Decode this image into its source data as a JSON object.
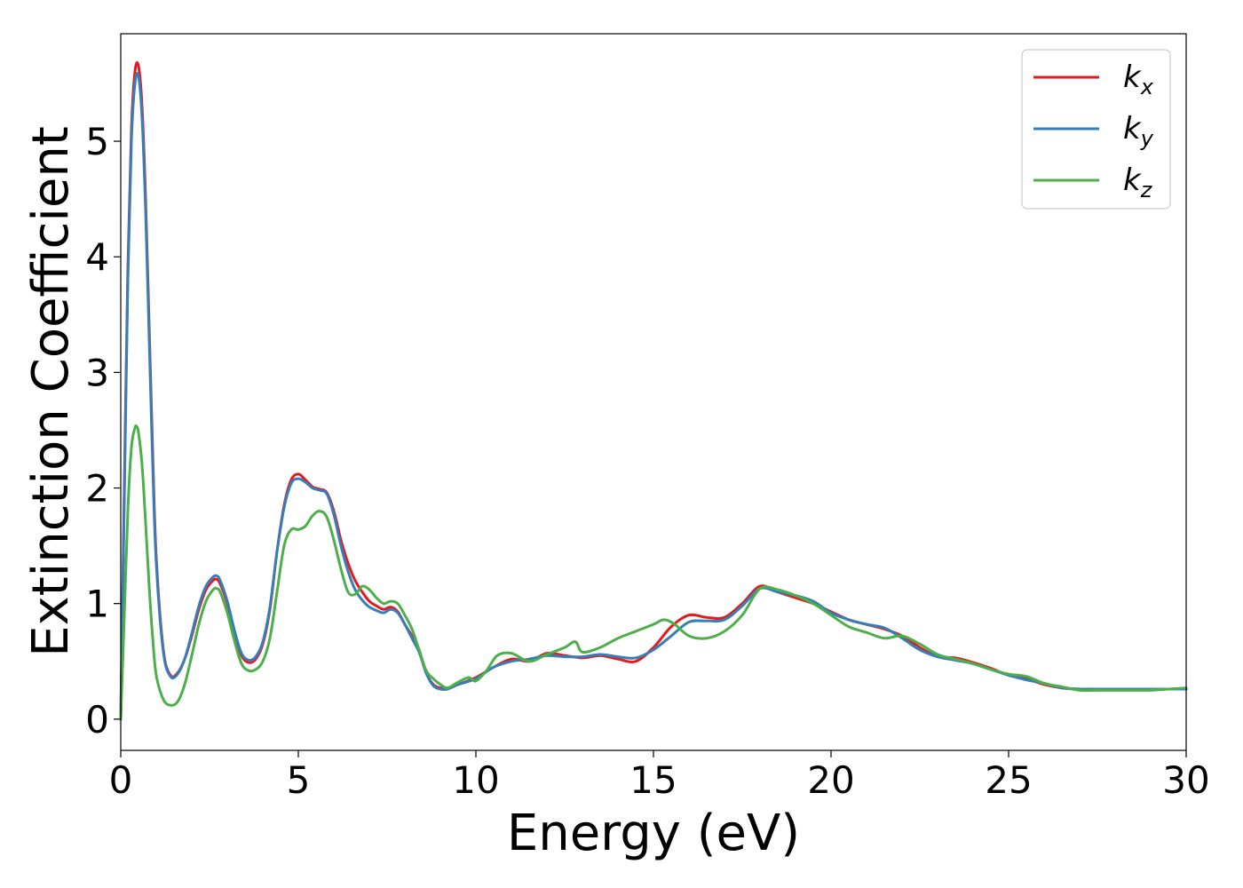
{
  "chart_data": {
    "type": "line",
    "title": "",
    "xlabel": "Energy (eV)",
    "ylabel": "Extinction Coefficient",
    "xlim": [
      0,
      30
    ],
    "ylim": [
      -0.27,
      5.93
    ],
    "xticks": [
      0,
      5,
      10,
      15,
      20,
      25,
      30
    ],
    "yticks": [
      0,
      1,
      2,
      3,
      4,
      5
    ],
    "grid": false,
    "legend_position": "top-right",
    "series": [
      {
        "name": "k",
        "subscript": "x",
        "color": "#e41a1c",
        "x": [
          0,
          0.1,
          0.2,
          0.3,
          0.4,
          0.5,
          0.6,
          0.7,
          0.8,
          0.9,
          1.0,
          1.2,
          1.4,
          1.6,
          1.8,
          2.0,
          2.2,
          2.4,
          2.6,
          2.7,
          2.8,
          3.0,
          3.2,
          3.4,
          3.6,
          3.8,
          4.0,
          4.2,
          4.4,
          4.6,
          4.8,
          5.0,
          5.2,
          5.4,
          5.6,
          5.8,
          6.0,
          6.2,
          6.4,
          6.6,
          6.8,
          7.0,
          7.2,
          7.4,
          7.6,
          7.8,
          8.0,
          8.2,
          8.4,
          8.6,
          8.8,
          9.0,
          9.2,
          9.5,
          10.0,
          10.5,
          11.0,
          11.5,
          12.0,
          12.5,
          13.0,
          13.5,
          14.0,
          14.5,
          15.0,
          15.5,
          16.0,
          16.5,
          17.0,
          17.5,
          18.0,
          18.5,
          19.0,
          19.5,
          20.0,
          20.5,
          21.0,
          21.5,
          22.0,
          22.5,
          23.0,
          23.5,
          24.0,
          24.5,
          25.0,
          25.5,
          26.0,
          26.5,
          27.0,
          27.5,
          28.0,
          28.5,
          29.0,
          29.5,
          30.0
        ],
        "y": [
          0.0,
          2.0,
          3.9,
          5.1,
          5.6,
          5.65,
          5.3,
          4.5,
          3.4,
          2.3,
          1.4,
          0.6,
          0.38,
          0.4,
          0.52,
          0.72,
          0.95,
          1.12,
          1.2,
          1.21,
          1.17,
          1.0,
          0.75,
          0.55,
          0.49,
          0.52,
          0.65,
          0.95,
          1.45,
          1.85,
          2.07,
          2.12,
          2.07,
          2.01,
          1.99,
          1.96,
          1.8,
          1.55,
          1.35,
          1.2,
          1.1,
          1.02,
          0.98,
          0.95,
          0.97,
          0.93,
          0.82,
          0.72,
          0.6,
          0.4,
          0.3,
          0.27,
          0.27,
          0.3,
          0.36,
          0.45,
          0.52,
          0.5,
          0.57,
          0.55,
          0.53,
          0.55,
          0.52,
          0.5,
          0.62,
          0.8,
          0.9,
          0.88,
          0.88,
          1.0,
          1.15,
          1.1,
          1.05,
          1.0,
          0.93,
          0.86,
          0.82,
          0.78,
          0.72,
          0.62,
          0.54,
          0.53,
          0.49,
          0.44,
          0.38,
          0.35,
          0.3,
          0.27,
          0.26,
          0.26,
          0.26,
          0.26,
          0.26,
          0.26,
          0.26
        ]
      },
      {
        "name": "k",
        "subscript": "y",
        "color": "#377eb8",
        "x": [
          0,
          0.1,
          0.2,
          0.3,
          0.4,
          0.5,
          0.6,
          0.7,
          0.8,
          0.9,
          1.0,
          1.2,
          1.4,
          1.6,
          1.8,
          2.0,
          2.2,
          2.4,
          2.6,
          2.7,
          2.8,
          3.0,
          3.2,
          3.4,
          3.6,
          3.8,
          4.0,
          4.2,
          4.4,
          4.6,
          4.8,
          5.0,
          5.2,
          5.4,
          5.6,
          5.8,
          6.0,
          6.2,
          6.4,
          6.6,
          6.8,
          7.0,
          7.2,
          7.4,
          7.6,
          7.8,
          8.0,
          8.2,
          8.4,
          8.6,
          8.8,
          9.0,
          9.2,
          9.5,
          10.0,
          10.5,
          11.0,
          11.5,
          12.0,
          12.5,
          13.0,
          13.5,
          14.0,
          14.5,
          15.0,
          15.5,
          16.0,
          16.5,
          17.0,
          17.5,
          18.0,
          18.5,
          19.0,
          19.5,
          20.0,
          20.5,
          21.0,
          21.5,
          22.0,
          22.5,
          23.0,
          23.5,
          24.0,
          24.5,
          25.0,
          25.5,
          26.0,
          26.5,
          27.0,
          27.5,
          28.0,
          28.5,
          29.0,
          29.5,
          30.0
        ],
        "y": [
          0.0,
          1.9,
          3.8,
          5.0,
          5.5,
          5.56,
          5.2,
          4.4,
          3.3,
          2.2,
          1.35,
          0.58,
          0.37,
          0.39,
          0.52,
          0.74,
          0.98,
          1.15,
          1.23,
          1.24,
          1.2,
          1.02,
          0.77,
          0.57,
          0.51,
          0.54,
          0.67,
          0.97,
          1.45,
          1.83,
          2.04,
          2.08,
          2.05,
          2.0,
          1.98,
          1.95,
          1.77,
          1.5,
          1.28,
          1.12,
          1.03,
          0.97,
          0.94,
          0.92,
          0.95,
          0.92,
          0.82,
          0.7,
          0.58,
          0.4,
          0.29,
          0.26,
          0.26,
          0.3,
          0.35,
          0.45,
          0.5,
          0.52,
          0.55,
          0.54,
          0.54,
          0.56,
          0.54,
          0.53,
          0.6,
          0.72,
          0.84,
          0.85,
          0.86,
          0.98,
          1.13,
          1.1,
          1.07,
          1.02,
          0.92,
          0.86,
          0.82,
          0.79,
          0.7,
          0.6,
          0.54,
          0.51,
          0.48,
          0.43,
          0.38,
          0.34,
          0.31,
          0.27,
          0.26,
          0.26,
          0.26,
          0.26,
          0.26,
          0.26,
          0.26
        ]
      },
      {
        "name": "k",
        "subscript": "z",
        "color": "#4daf4a",
        "x": [
          0,
          0.1,
          0.2,
          0.3,
          0.4,
          0.45,
          0.5,
          0.6,
          0.7,
          0.8,
          0.9,
          1.0,
          1.2,
          1.4,
          1.6,
          1.8,
          2.0,
          2.2,
          2.4,
          2.6,
          2.7,
          2.8,
          3.0,
          3.2,
          3.4,
          3.6,
          3.8,
          4.0,
          4.2,
          4.4,
          4.6,
          4.8,
          5.0,
          5.2,
          5.4,
          5.6,
          5.8,
          6.0,
          6.2,
          6.4,
          6.6,
          6.8,
          7.0,
          7.2,
          7.4,
          7.6,
          7.8,
          8.0,
          8.2,
          8.4,
          8.6,
          8.8,
          9.0,
          9.2,
          9.5,
          9.8,
          10.0,
          10.3,
          10.6,
          11.0,
          11.5,
          12.0,
          12.5,
          12.8,
          13.0,
          13.5,
          14.0,
          14.5,
          15.0,
          15.3,
          15.6,
          16.0,
          16.5,
          17.0,
          17.5,
          18.0,
          18.5,
          19.0,
          19.5,
          20.0,
          20.5,
          21.0,
          21.5,
          22.0,
          22.5,
          23.0,
          23.5,
          24.0,
          24.5,
          25.0,
          25.5,
          26.0,
          26.5,
          27.0,
          27.5,
          28.0,
          28.5,
          29.0,
          29.5,
          30.0
        ],
        "y": [
          0.0,
          0.9,
          1.8,
          2.35,
          2.52,
          2.53,
          2.48,
          2.2,
          1.7,
          1.15,
          0.7,
          0.38,
          0.17,
          0.12,
          0.15,
          0.3,
          0.55,
          0.82,
          1.02,
          1.12,
          1.13,
          1.1,
          0.92,
          0.68,
          0.48,
          0.42,
          0.43,
          0.5,
          0.7,
          1.1,
          1.5,
          1.64,
          1.64,
          1.67,
          1.76,
          1.8,
          1.75,
          1.55,
          1.3,
          1.1,
          1.08,
          1.15,
          1.12,
          1.05,
          1.0,
          1.02,
          1.0,
          0.9,
          0.78,
          0.6,
          0.42,
          0.35,
          0.3,
          0.27,
          0.32,
          0.36,
          0.33,
          0.42,
          0.55,
          0.57,
          0.5,
          0.56,
          0.62,
          0.67,
          0.58,
          0.62,
          0.7,
          0.76,
          0.82,
          0.86,
          0.82,
          0.72,
          0.7,
          0.76,
          0.9,
          1.13,
          1.12,
          1.07,
          1.0,
          0.9,
          0.8,
          0.75,
          0.7,
          0.72,
          0.65,
          0.56,
          0.52,
          0.48,
          0.43,
          0.39,
          0.37,
          0.31,
          0.28,
          0.25,
          0.25,
          0.25,
          0.25,
          0.25,
          0.26,
          0.27
        ]
      }
    ]
  }
}
